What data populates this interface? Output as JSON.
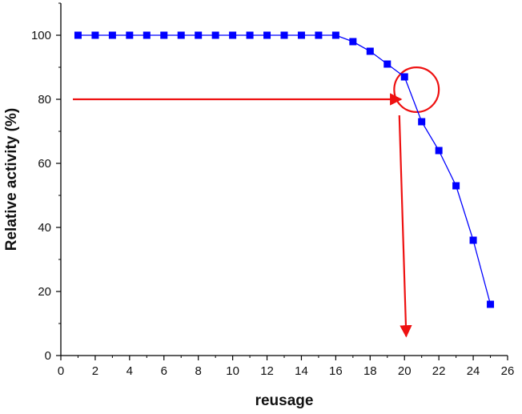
{
  "chart_data": {
    "type": "line",
    "title": "",
    "xlabel": "reusage",
    "ylabel": "Relative activity (%)",
    "xlim": [
      0,
      26
    ],
    "ylim": [
      0,
      110
    ],
    "xticks": [
      0,
      2,
      4,
      6,
      8,
      10,
      12,
      14,
      16,
      18,
      20,
      22,
      24,
      26
    ],
    "yticks": [
      0,
      20,
      40,
      60,
      80,
      100
    ],
    "grid": false,
    "legend": "none",
    "series": [
      {
        "color": "#0000ff",
        "marker": "square",
        "x": [
          1,
          2,
          3,
          4,
          5,
          6,
          7,
          8,
          9,
          10,
          11,
          12,
          13,
          14,
          15,
          16,
          17,
          18,
          19,
          20,
          21,
          22,
          23,
          24,
          25
        ],
        "y": [
          100,
          100,
          100,
          100,
          100,
          100,
          100,
          100,
          100,
          100,
          100,
          100,
          100,
          100,
          100,
          100,
          98,
          95,
          91,
          87,
          73,
          64,
          53,
          36,
          16
        ]
      }
    ],
    "annotations": {
      "color": "#ee1111",
      "horizontal_arrow": {
        "from": [
          0.7,
          80
        ],
        "to": [
          19.8,
          80
        ]
      },
      "vertical_arrow": {
        "from": [
          19.7,
          75
        ],
        "to": [
          20.1,
          6
        ]
      },
      "circle": {
        "center": [
          20.7,
          83
        ],
        "radius_x_units": 1.3
      }
    }
  }
}
